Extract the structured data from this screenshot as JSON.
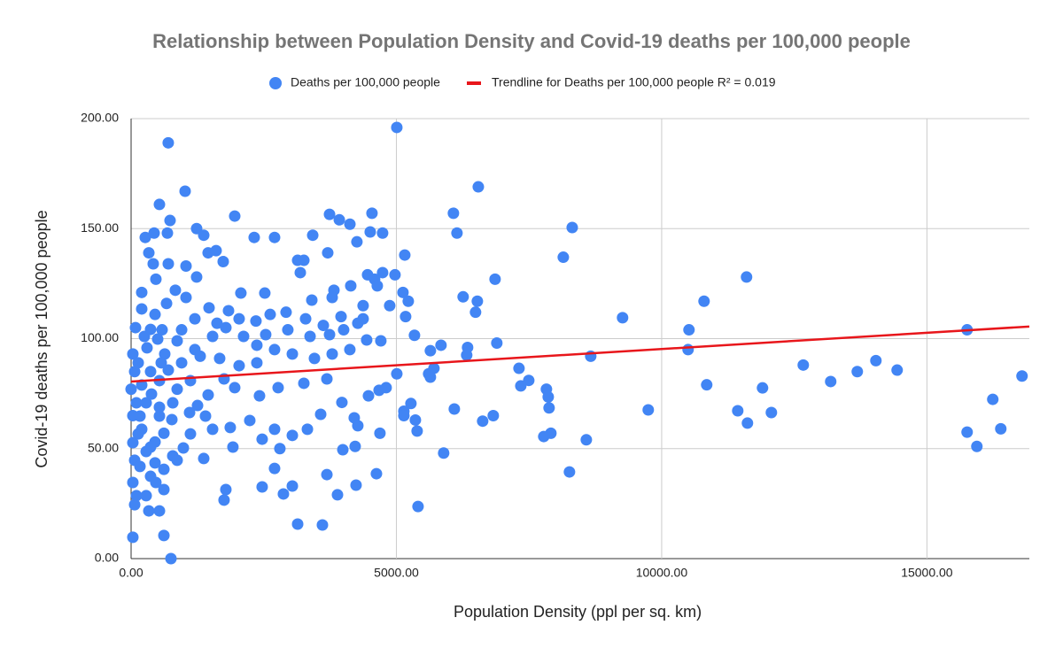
{
  "chart_data": {
    "type": "scatter",
    "title": "Relationship between Population Density and Covid-19 deaths per 100,000 people",
    "x_label": "Population Density (ppl per sq. km)",
    "y_label": "Covid-19 deaths per 100,000 people",
    "xlim": [
      0,
      16930
    ],
    "ylim": [
      0,
      200
    ],
    "xticks": [
      {
        "value": 0,
        "label": "0.00"
      },
      {
        "value": 5000,
        "label": "5000.00"
      },
      {
        "value": 10000,
        "label": "10000.00"
      },
      {
        "value": 15000,
        "label": "15000.00"
      }
    ],
    "yticks": [
      {
        "value": 0,
        "label": "0.00"
      },
      {
        "value": 50,
        "label": "50.00"
      },
      {
        "value": 100,
        "label": "100.00"
      },
      {
        "value": 150,
        "label": "150.00"
      },
      {
        "value": 200,
        "label": "200.00"
      }
    ],
    "grid": true,
    "legend": "top",
    "series": [
      {
        "name": "Deaths per 100,000 people",
        "color": "#4285f4",
        "x": [
          5008,
          700,
          6544,
          1018,
          534,
          8314,
          6075,
          6142,
          8146,
          11600,
          6860,
          9263,
          10799,
          10515,
          15757,
          10498,
          8663,
          7311,
          7495,
          7345,
          7828,
          7862,
          7878,
          6826,
          6626,
          6092,
          5891,
          5408,
          5391,
          5358,
          8262,
          8580,
          7912,
          7778,
          9747,
          10849,
          11901,
          11434,
          11617,
          12068,
          12669,
          13186,
          13687,
          14038,
          14438,
          15757,
          15941,
          16241,
          16392,
          16792,
          5841,
          6342,
          6258,
          6492,
          6526,
          6893,
          5641,
          5708,
          5608,
          5641,
          5174,
          5124,
          5224,
          5158,
          4974,
          5008,
          5141,
          5141,
          5274,
          5341,
          6325,
          734,
          1953,
          1235,
          684,
          267,
          434,
          2704,
          3423,
          4124,
          3740,
          3924,
          4540,
          4740,
          4507,
          4256,
          2320,
          1369,
          1452,
          3706,
          3139,
          3256,
          3189,
          4457,
          4740,
          4590,
          4640,
          4140,
          3406,
          3823,
          3790,
          2520,
          2069,
          834,
          1235,
          1736,
          1602,
          1035,
          701,
          334,
          467,
          417,
          200,
          83,
          33,
          67,
          0,
          33,
          33,
          67,
          33,
          67,
          33,
          751,
          618,
          534,
          334,
          284,
          100,
          618,
          467,
          367,
          167,
          785,
          985,
          1369,
          1786,
          1752,
          2470,
          2871,
          3039,
          3139,
          3606,
          3890,
          4240,
          4624,
          3690,
          2704,
          2804,
          2470,
          3039,
          3323,
          3573,
          3973,
          4206,
          4273,
          4690,
          4223,
          3990,
          4674,
          4807,
          4474,
          3690,
          3256,
          2771,
          2420,
          1953,
          1752,
          1452,
          1252,
          1102,
          768,
          618,
          451,
          534,
          284,
          200,
          367,
          167,
          384,
          534,
          701,
          952,
          1202,
          1536,
          1786,
          2036,
          2353,
          2621,
          2921,
          3289,
          3623,
          3957,
          4373,
          4707,
          4440,
          4123,
          3790,
          3456,
          3039,
          2704,
          2370,
          2036,
          1669,
          1302,
          868,
          584,
          300,
          451,
          200,
          668,
          1035,
          1469,
          1836,
          2370,
          1402,
          1869,
          2237,
          2704,
          1536,
          1919,
          1118,
          868,
          618,
          284,
          451,
          134,
          100,
          200,
          134,
          250,
          367,
          501,
          634,
          868,
          1118,
          785,
          534,
          367,
          568,
          952,
          1202,
          1619,
          2120,
          2537,
          2954,
          3373,
          3740,
          4006,
          4273,
          4373,
          4874
        ],
        "values": [
          196,
          189,
          169,
          167,
          161,
          150.5,
          157,
          148,
          137,
          128,
          127,
          109.5,
          117,
          104,
          104,
          95,
          92,
          86.5,
          81,
          78.5,
          77,
          73.5,
          68.5,
          65,
          62.5,
          68,
          48,
          23.7,
          58,
          63,
          39.4,
          54,
          57,
          55.5,
          67.6,
          79,
          77.6,
          67.2,
          61.6,
          66.4,
          88,
          80.5,
          85,
          90,
          85.7,
          57.5,
          51,
          72.4,
          59,
          83,
          97,
          96,
          119,
          112,
          117,
          98,
          94.5,
          86.5,
          84,
          82.5,
          110,
          121,
          117,
          138,
          129,
          84,
          67,
          65,
          70.5,
          101.5,
          92.5,
          153.7,
          155.7,
          150,
          148,
          146,
          148,
          146,
          147,
          152,
          156.5,
          154,
          157,
          148,
          148.5,
          144,
          146,
          147,
          139,
          139,
          135.6,
          135.6,
          130,
          129,
          130,
          127,
          124,
          124,
          117.5,
          122,
          118.7,
          120.7,
          120.7,
          122,
          128,
          135,
          140,
          133,
          134,
          139,
          127,
          134,
          113.5,
          105,
          93,
          85,
          77,
          65,
          52.7,
          44.7,
          34.6,
          24.5,
          9.7,
          0,
          10.5,
          21.7,
          21.7,
          28.6,
          28.6,
          31.4,
          34.6,
          37.4,
          41.9,
          46.7,
          50.3,
          45.5,
          31.4,
          26.6,
          32.6,
          29.4,
          33,
          15.7,
          15.3,
          29,
          33.4,
          38.6,
          38.2,
          41,
          50,
          54.3,
          56,
          58.8,
          65.6,
          71,
          64,
          60.4,
          57,
          51,
          49.5,
          76.5,
          77.7,
          74,
          81.7,
          79.7,
          77.7,
          74,
          77.7,
          81.7,
          74.4,
          69.6,
          66.4,
          63.2,
          57,
          53,
          64.8,
          70.8,
          58.8,
          50.7,
          64.8,
          74.8,
          80.9,
          85.7,
          89,
          95,
          101,
          105,
          109,
          108,
          111,
          112,
          109,
          106,
          110,
          109,
          99,
          99.4,
          95,
          93,
          91,
          93,
          95,
          89,
          87.7,
          91,
          92,
          99,
          104,
          95.8,
          111,
          121,
          116,
          118.7,
          114,
          112.7,
          97,
          64.8,
          59.6,
          62.8,
          58.8,
          58.8,
          50.7,
          56.7,
          44.7,
          40.6,
          48.7,
          43.5,
          56.7,
          70.8,
          78.9,
          89,
          101,
          104.2,
          99.8,
          93,
          77,
          80.9,
          70.8,
          68.8,
          85,
          89,
          104,
          109,
          107,
          101,
          101.8,
          104,
          101,
          101.8,
          104,
          107,
          115,
          115
        ]
      }
    ],
    "trendline": {
      "name": "Trendline for Deaths per 100,000 people R² = 0.019",
      "color": "#e8161b",
      "x": [
        0,
        16930
      ],
      "values": [
        80.5,
        105.5
      ]
    }
  }
}
